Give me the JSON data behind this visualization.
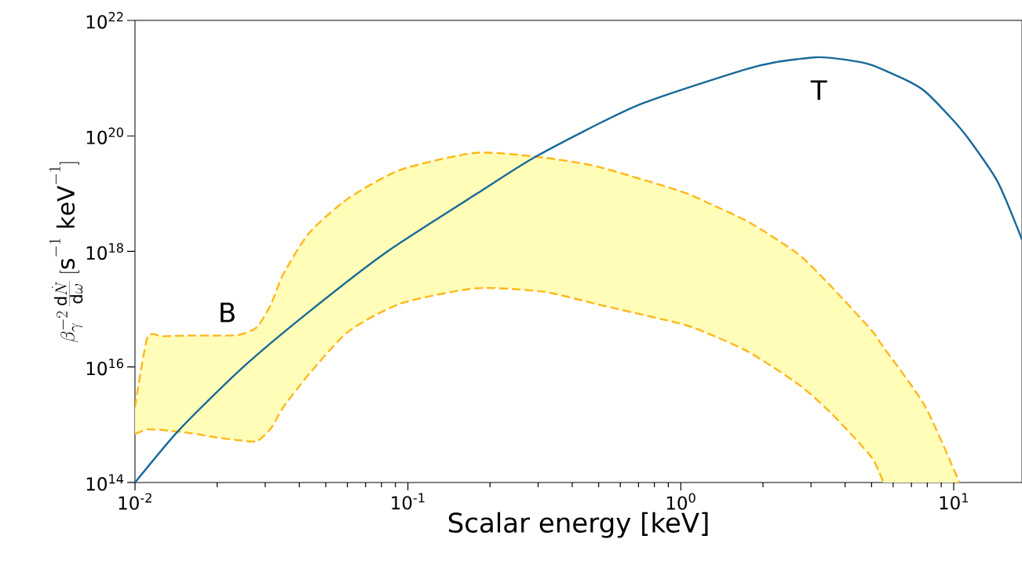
{
  "chart_data": {
    "type": "line",
    "xlabel": "Scalar energy [keV]",
    "ylabel": "\\beta_{\\gamma}^{-2}\\,\\frac{\\mathrm{d}\\dot{N}}{\\mathrm{d}\\omega}\\;[\\mathrm{s}^{-1}\\ \\mathrm{keV}^{-1}]",
    "log": "xy",
    "xlim": [
      0.01,
      17.8
    ],
    "ylim": [
      100000000000000.0,
      1e+22
    ],
    "xticks": [
      {
        "value": 0.01,
        "label": "10$^{-2}$"
      },
      {
        "value": 0.1,
        "label": "10$^{-1}$"
      },
      {
        "value": 1,
        "label": "10$^{0}$"
      },
      {
        "value": 10,
        "label": "10$^{1}$"
      }
    ],
    "yticks": [
      {
        "value": 100000000000000.0,
        "label": "10$^{14}$"
      },
      {
        "value": 1e+16,
        "label": "10$^{16}$"
      },
      {
        "value": 1e+18,
        "label": "10$^{18}$"
      },
      {
        "value": 1e+20,
        "label": "10$^{20}$"
      },
      {
        "value": 1e+22,
        "label": "10$^{22}$"
      }
    ],
    "series": [
      {
        "color": "#ffb81c",
        "line_style": "dashed",
        "x": [
          0.01,
          0.0111,
          0.0126,
          0.0162,
          0.02,
          0.024,
          0.028,
          0.0316,
          0.0349,
          0.0435,
          0.0605,
          0.0942,
          0.178,
          0.316,
          0.501,
          1,
          1.26,
          1.78,
          2.7,
          3.55,
          4.98,
          5.53,
          7.85,
          10.5
        ],
        "values": [
          2000000000000000.0,
          3.2e+16,
          3.4e+16,
          3.5e+16,
          3.5e+16,
          3.6e+16,
          4.9e+16,
          1.26e+17,
          4e+17,
          2.1e+18,
          8.3e+18,
          2.6e+19,
          5.1e+19,
          4.2e+19,
          2.9e+19,
          1.1e+19,
          6.9e+18,
          3.2e+18,
          8.9e+17,
          2.5e+17,
          4.4e+16,
          2.2e+16,
          2100000000000000.0,
          100000000000000.0
        ],
        "upper": [
          2000000000000000.0,
          3.2e+16,
          3.4e+16,
          3.5e+16,
          3.5e+16,
          3.6e+16,
          4.9e+16,
          1.26e+17,
          4e+17,
          2.1e+18,
          8.3e+18,
          2.6e+19,
          5.1e+19,
          4.2e+19,
          2.9e+19,
          1.1e+19,
          6.9e+18,
          3.2e+18,
          8.9e+17,
          2.5e+17,
          4.4e+16,
          2.2e+16,
          2100000000000000.0,
          100000000000000.0
        ],
        "lower": [
          690000000000000.0,
          830000000000000.0,
          810000000000000.0,
          710000000000000.0,
          600000000000000.0,
          540000000000000.0,
          520000000000000.0,
          890000000000000.0,
          2000000000000000.0,
          7600000000000000.0,
          4.1e+16,
          1.26e+17,
          2.3e+17,
          2e+17,
          1.2e+17,
          5.6e+16,
          3.8e+16,
          1.8e+16,
          5000000000000000.0,
          1600000000000000.0,
          280000000000000.0,
          100000000000000.0,
          100000000000000.0,
          100000000000000.0
        ]
      },
      {
        "color": "#ffb81c",
        "line_style": "dashed",
        "x": [
          0.01,
          0.0111,
          0.0126,
          0.0162,
          0.02,
          0.024,
          0.028,
          0.0316,
          0.0349,
          0.0435,
          0.0605,
          0.0942,
          0.178,
          0.316,
          0.501,
          1,
          1.26,
          1.78,
          2.7,
          3.55,
          4.98,
          5.53
        ],
        "values": [
          690000000000000.0,
          830000000000000.0,
          810000000000000.0,
          710000000000000.0,
          600000000000000.0,
          540000000000000.0,
          520000000000000.0,
          890000000000000.0,
          2000000000000000.0,
          7600000000000000.0,
          4.1e+16,
          1.26e+17,
          2.3e+17,
          2e+17,
          1.2e+17,
          5.6e+16,
          3.8e+16,
          1.8e+16,
          5000000000000000.0,
          1600000000000000.0,
          280000000000000.0,
          100000000000000.0
        ]
      },
      {
        "color": "#17699a",
        "line_style": "solid",
        "x": [
          0.01,
          0.0145,
          0.0245,
          0.0435,
          0.0841,
          0.179,
          0.297,
          0.686,
          1.71,
          2.24,
          3.14,
          3.98,
          4.98,
          6.75,
          7.85,
          9.73,
          11.3,
          14.5,
          17.8
        ],
        "values": [
          100000000000000.0,
          810000000000000.0,
          9300000000000000.0,
          9.1e+16,
          1e+18,
          1e+19,
          4.5e+19,
          3.3e+20,
          1.4e+21,
          1.9e+21,
          2.3e+21,
          2.1e+21,
          1.7e+21,
          9.1e+20,
          5.9e+20,
          2.1e+20,
          9.1e+19,
          1.6e+19,
          1.6e+18
        ]
      }
    ],
    "annotations": [
      "B",
      "T"
    ]
  }
}
